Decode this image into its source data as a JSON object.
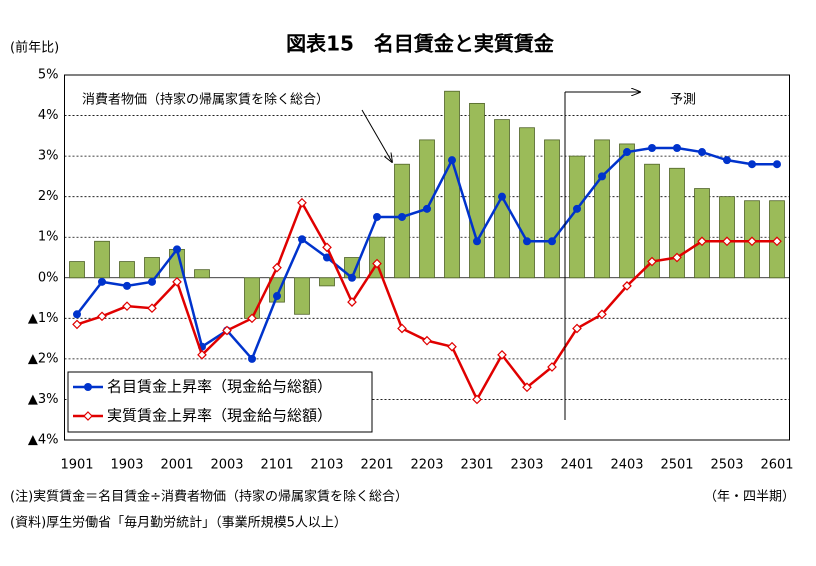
{
  "chart_data": {
    "type": "combo",
    "title": "図表15　名目賃金と実質賃金",
    "y_axis_label": "(前年比)",
    "x_axis_label": "（年・四半期）",
    "annotation": "予測",
    "notes": [
      "(注)実質賃金＝名目賃金÷消費者物価（持家の帰属家賃を除く総合）",
      "(資料)厚生労働省「毎月勤労統計」（事業所規模5人以上）"
    ],
    "categories": [
      "1901",
      null,
      "1903",
      null,
      "2001",
      null,
      "2003",
      null,
      "2101",
      null,
      "2103",
      null,
      "2201",
      null,
      "2203",
      null,
      "2301",
      null,
      "2303",
      null,
      "2401",
      null,
      "2403",
      null,
      "2501",
      null,
      "2503",
      null,
      "2601"
    ],
    "series": [
      {
        "name": "消費者物価（持家の帰属家賃を除く総合）",
        "type": "bar",
        "color": "#9bbb59",
        "values": [
          0.4,
          0.9,
          0.4,
          0.5,
          0.7,
          0.2,
          0,
          -1.0,
          -0.6,
          -0.9,
          -0.2,
          0.5,
          1.0,
          2.8,
          3.4,
          4.6,
          4.3,
          3.9,
          3.7,
          3.4,
          3.0,
          3.4,
          3.3,
          2.8,
          2.7,
          2.2,
          2.0,
          1.9,
          1.9
        ]
      },
      {
        "name": "名目賃金上昇率（現金給与総額）",
        "type": "line",
        "color": "#0033cc",
        "marker": "circle",
        "values": [
          -0.9,
          -0.1,
          -0.2,
          -0.1,
          0.7,
          -1.7,
          -1.3,
          -2.0,
          -0.45,
          0.95,
          0.5,
          0.0,
          1.5,
          1.5,
          1.7,
          2.9,
          0.9,
          2.0,
          0.9,
          0.9,
          1.7,
          2.5,
          3.1,
          3.2,
          3.2,
          3.1,
          2.9,
          2.8,
          2.8
        ]
      },
      {
        "name": "実質賃金上昇率（現金給与総額）",
        "type": "line",
        "color": "#e00000",
        "marker": "diamond",
        "values": [
          -1.15,
          -0.95,
          -0.7,
          -0.75,
          -0.1,
          -1.9,
          -1.3,
          -1.0,
          0.25,
          1.85,
          0.75,
          -0.6,
          0.35,
          -1.25,
          -1.55,
          -1.7,
          -3.0,
          -1.9,
          -2.7,
          -2.2,
          -1.25,
          -0.9,
          -0.2,
          0.4,
          0.5,
          0.9,
          0.9,
          0.9,
          0.9
        ]
      }
    ],
    "ylim": [
      -4,
      5
    ],
    "yticks": [
      {
        "value": 5,
        "label": "5%"
      },
      {
        "value": 4,
        "label": "4%"
      },
      {
        "value": 3,
        "label": "3%"
      },
      {
        "value": 2,
        "label": "2%"
      },
      {
        "value": 1,
        "label": "1%"
      },
      {
        "value": 0,
        "label": "0%"
      },
      {
        "value": -1,
        "label": "▲1%"
      },
      {
        "value": -2,
        "label": "▲2%"
      },
      {
        "value": -3,
        "label": "▲3%"
      },
      {
        "value": -4,
        "label": "▲4%"
      }
    ],
    "grid": true
  }
}
